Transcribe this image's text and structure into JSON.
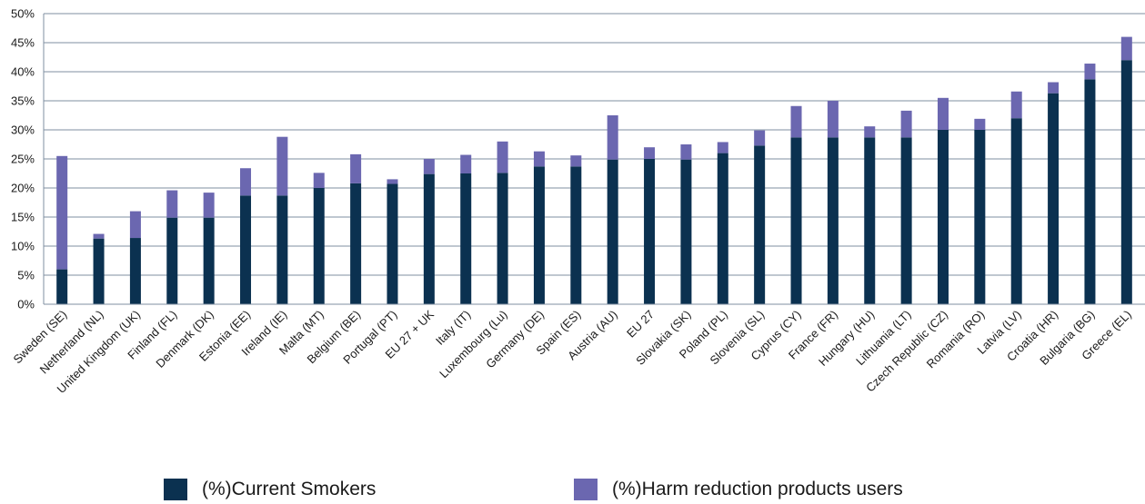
{
  "chart_data": {
    "type": "bar",
    "stacked": true,
    "categories": [
      "Sweden (SE)",
      "Netherland (NL)",
      "United Kingdom (UK)",
      "Finland (FL)",
      "Denmark (DK)",
      "Estonia (EE)",
      "Ireland (IE)",
      "Malta (MT)",
      "Belgium (BE)",
      "Portugal (PT)",
      "EU 27 + UK",
      "Italy (IT)",
      "Luxembourg (Lu)",
      "Germany (DE)",
      "Spain (ES)",
      "Austria (AU)",
      "EU 27",
      "Slovakia (SK)",
      "Poland (PL)",
      "Slovenia (SL)",
      "Cyprus (CY)",
      "France (FR)",
      "Hungary (HU)",
      "Lithuania (LT)",
      "Czech Republic (CZ)",
      "Romania (RO)",
      "Latvia (LV)",
      "Croatia (HR)",
      "Bulgaria (BG)",
      "Greece (EL)"
    ],
    "series": [
      {
        "name": "(%)Current Smokers",
        "color": "#0b3150",
        "values": [
          6,
          11.3,
          11.4,
          14.9,
          14.9,
          18.7,
          18.7,
          20,
          20.8,
          20.7,
          22.4,
          22.5,
          22.6,
          23.7,
          23.7,
          24.9,
          25,
          24.9,
          26,
          27.3,
          28.7,
          28.7,
          28.7,
          28.7,
          30,
          30,
          32,
          36.3,
          38.7,
          42
        ]
      },
      {
        "name": "(%)Harm reduction products users",
        "color": "#6b67b0",
        "values": [
          19.5,
          0.8,
          4.6,
          4.7,
          4.3,
          4.7,
          10.1,
          2.6,
          5,
          0.8,
          2.6,
          3.2,
          5.4,
          2.6,
          1.9,
          7.6,
          2,
          2.6,
          1.9,
          2.6,
          5.4,
          6.3,
          1.9,
          4.6,
          5.5,
          1.9,
          4.6,
          1.9,
          2.7,
          4
        ]
      }
    ],
    "yticks": [
      "0%",
      "5%",
      "10%",
      "15%",
      "20%",
      "25%",
      "30%",
      "35%",
      "40%",
      "45%",
      "50%"
    ],
    "ylim": [
      0,
      50
    ],
    "grid": true,
    "legend_position": "bottom"
  }
}
